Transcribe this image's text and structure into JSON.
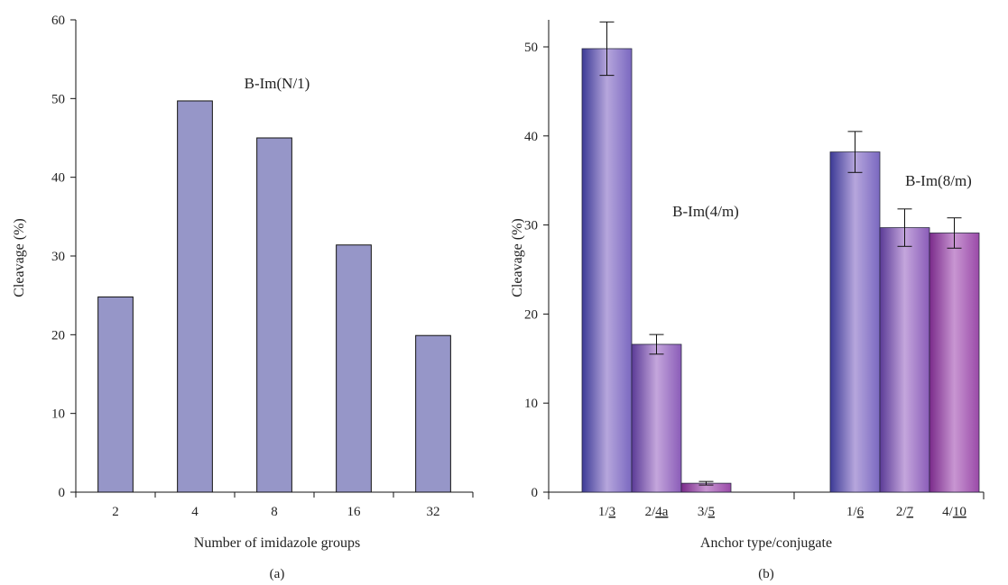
{
  "chart_data": [
    {
      "type": "bar",
      "panel_label": "(a)",
      "categories": [
        "2",
        "4",
        "8",
        "16",
        "32"
      ],
      "values": [
        24.8,
        49.7,
        45.0,
        31.4,
        19.9
      ],
      "annotation": "B-Im(N/1)",
      "xlabel": "Number of imidazole groups",
      "ylabel": "Cleavage (%)",
      "ylim": [
        0,
        60
      ],
      "yticks": [
        0,
        10,
        20,
        30,
        40,
        50,
        60
      ],
      "grid": false,
      "color": "#9696c8",
      "edge_color": "#111111"
    },
    {
      "type": "bar",
      "panel_label": "(b)",
      "groups": [
        {
          "annotation": "B-Im(4/m)",
          "categories": [
            {
              "prefix": "1/",
              "underlined": "3"
            },
            {
              "prefix": "2/",
              "underlined": "4a"
            },
            {
              "prefix": "3/",
              "underlined": "5"
            }
          ],
          "values": [
            49.8,
            16.6,
            1.0
          ],
          "errors": [
            3.0,
            1.1,
            0.2
          ]
        },
        {
          "annotation": "B-Im(8/m)",
          "categories": [
            {
              "prefix": "1/",
              "underlined": "6"
            },
            {
              "prefix": "2/",
              "underlined": "7"
            },
            {
              "prefix": "4/",
              "underlined": "10"
            }
          ],
          "values": [
            38.2,
            29.7,
            29.1
          ],
          "errors": [
            2.3,
            2.1,
            1.7
          ]
        }
      ],
      "bar_colors": [
        "#5a55b4",
        "#8a5ab4",
        "#a04aa4"
      ],
      "xlabel": "Anchor type/conjugate",
      "ylabel": "Cleavage (%)",
      "ylim": [
        0,
        50
      ],
      "yticks": [
        0,
        10,
        20,
        30,
        40,
        50
      ],
      "grid": false
    }
  ]
}
